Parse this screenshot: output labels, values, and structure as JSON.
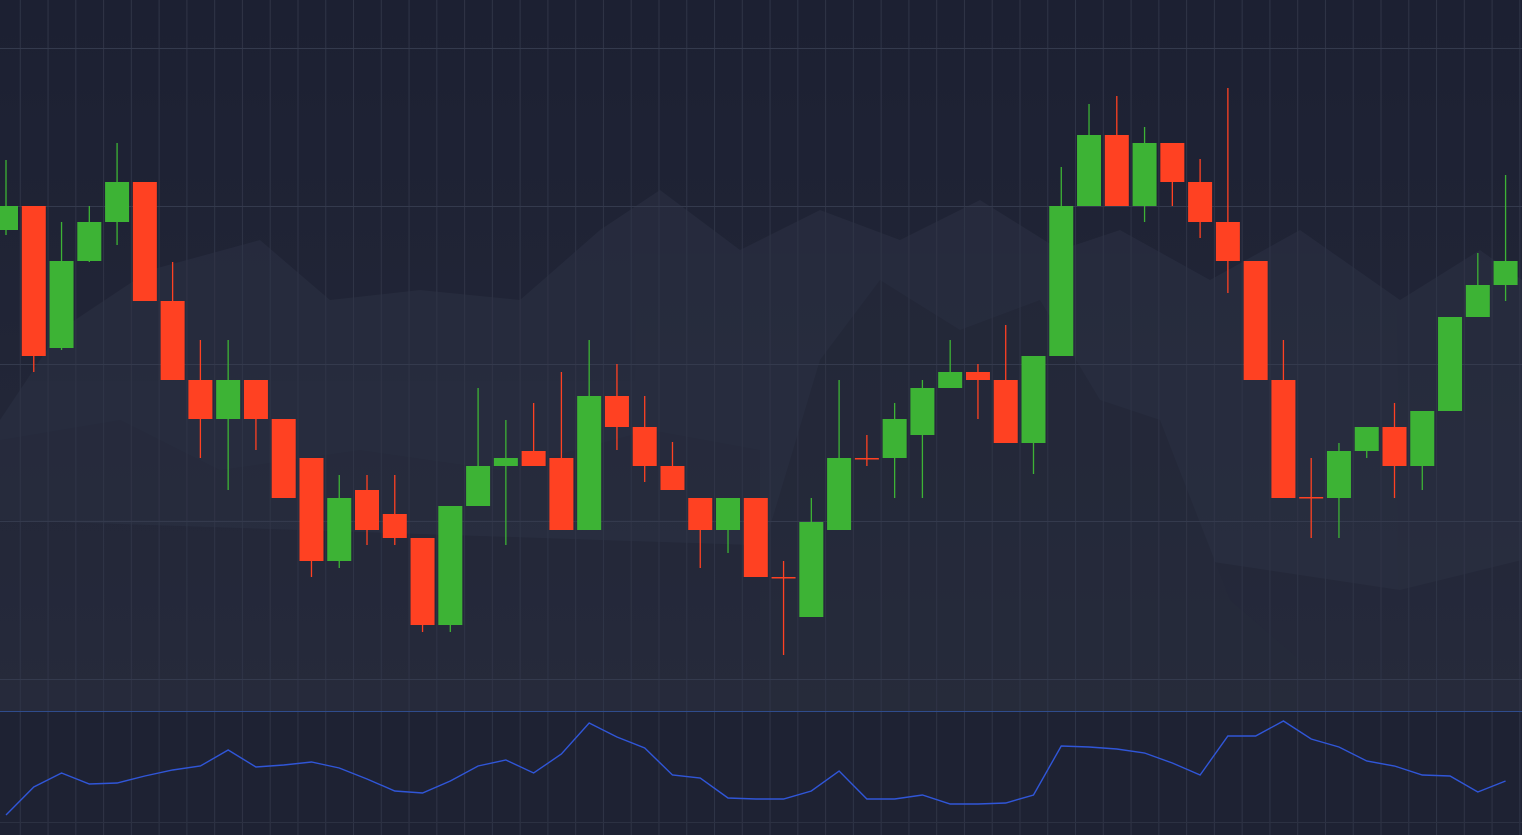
{
  "chart_data": [
    {
      "type": "candlestick",
      "up_color": "#3db335",
      "down_color": "#ff4122",
      "ylim": [
        0,
        710
      ],
      "open": [
        480,
        504,
        362,
        449,
        488,
        528,
        409,
        330,
        291,
        330,
        291,
        252,
        149,
        220,
        196,
        172,
        85,
        204,
        244,
        259,
        252,
        180,
        314,
        283,
        244,
        212,
        180,
        212,
        133,
        93,
        180,
        252,
        252,
        275,
        322,
        338,
        330,
        267,
        354,
        504,
        575,
        504,
        567,
        528,
        488,
        449,
        330,
        213,
        212,
        259,
        283,
        244,
        299,
        393,
        425
      ],
      "high": [
        550,
        504,
        488,
        504,
        567,
        528,
        448,
        370,
        370,
        330,
        291,
        252,
        235,
        235,
        235,
        172,
        204,
        322,
        290,
        307,
        338,
        370,
        346,
        314,
        268,
        212,
        212,
        212,
        149,
        212,
        330,
        275,
        307,
        330,
        370,
        346,
        385,
        354,
        543,
        606,
        614,
        583,
        567,
        551,
        622,
        449,
        370,
        252,
        267,
        283,
        307,
        299,
        393,
        457,
        535
      ],
      "low": [
        475,
        338,
        360,
        448,
        465,
        409,
        330,
        252,
        220,
        260,
        212,
        133,
        142,
        165,
        165,
        78,
        78,
        204,
        165,
        244,
        180,
        180,
        260,
        228,
        220,
        142,
        157,
        133,
        55,
        93,
        180,
        244,
        212,
        212,
        322,
        291,
        267,
        236,
        354,
        504,
        504,
        488,
        504,
        472,
        417,
        330,
        212,
        172,
        172,
        252,
        212,
        220,
        299,
        393,
        409
      ],
      "close": [
        504,
        354,
        449,
        488,
        528,
        409,
        330,
        291,
        330,
        291,
        212,
        149,
        212,
        180,
        172,
        85,
        204,
        244,
        252,
        244,
        180,
        314,
        283,
        244,
        220,
        180,
        212,
        133,
        132,
        188,
        252,
        251,
        291,
        322,
        338,
        330,
        267,
        354,
        504,
        575,
        504,
        567,
        528,
        488,
        449,
        330,
        212,
        212,
        259,
        283,
        244,
        299,
        393,
        425,
        449
      ]
    },
    {
      "type": "line",
      "color": "#3056d8",
      "ylim": [
        0,
        123
      ],
      "values": [
        20,
        48,
        62,
        51,
        52,
        59,
        65,
        69,
        85,
        68,
        70,
        73,
        67,
        56,
        44,
        42,
        54,
        69,
        75,
        62,
        81,
        112,
        98,
        87,
        60,
        57,
        37,
        36,
        36,
        44,
        64,
        36,
        36,
        40,
        31,
        31,
        32,
        40,
        89,
        88,
        86,
        82,
        72,
        60,
        99,
        99,
        114,
        96,
        88,
        74,
        69,
        60,
        59,
        43,
        54
      ]
    }
  ]
}
